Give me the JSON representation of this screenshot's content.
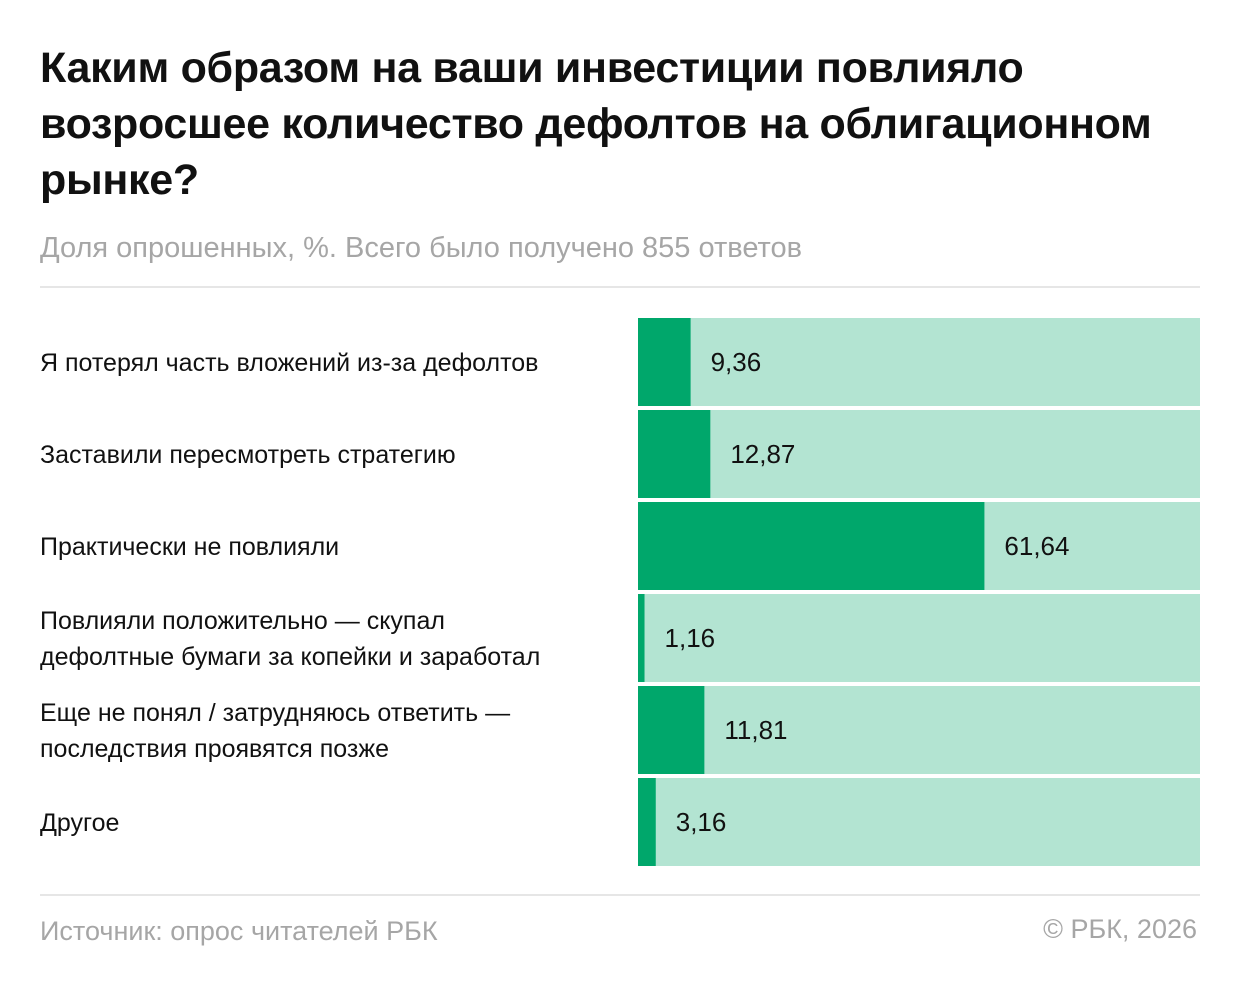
{
  "colors": {
    "bar": "#00a76b",
    "track": "#b3e4d2",
    "muted": "#a6a6a6"
  },
  "chart_data": {
    "type": "bar",
    "orientation": "horizontal",
    "title": "Каким образом на ваши инвестиции повлияло возросшее количество дефолтов на облигационном рынке?",
    "subtitle": "Доля опрошенных, %. Всего было получено 855 ответов",
    "categories": [
      [
        "Я потерял часть вложений из-за дефолтов"
      ],
      [
        "Заставили пересмотреть стратегию"
      ],
      [
        "Практически не повлияли"
      ],
      [
        "Повлияли положительно — скупал",
        "дефолтные бумаги за копейки и заработал"
      ],
      [
        "Еще не понял / затрудняюсь ответить —",
        "последствия проявятся позже"
      ],
      [
        "Другое"
      ]
    ],
    "values": [
      9.36,
      12.87,
      61.64,
      1.16,
      11.81,
      3.16
    ],
    "value_labels": [
      "9,36",
      "12,87",
      "61,64",
      "1,16",
      "11,81",
      "3,16"
    ],
    "xlim": [
      0,
      100
    ]
  },
  "footer": {
    "source": "Источник: опрос читателей РБК",
    "copyright": "© РБК, 2026"
  }
}
